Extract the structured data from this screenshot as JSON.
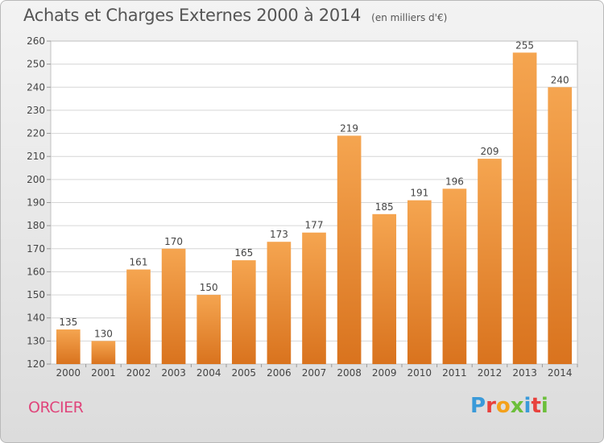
{
  "chart_data": {
    "type": "bar",
    "title": "Achats et Charges Externes 2000 à 2014",
    "subtitle": "(en milliers d'€)",
    "categories": [
      "2000",
      "2001",
      "2002",
      "2003",
      "2004",
      "2005",
      "2006",
      "2007",
      "2008",
      "2009",
      "2010",
      "2011",
      "2012",
      "2013",
      "2014"
    ],
    "values": [
      135,
      130,
      161,
      170,
      150,
      165,
      173,
      177,
      219,
      185,
      191,
      196,
      209,
      255,
      240
    ],
    "ylim": [
      120,
      260
    ],
    "yticks": [
      120,
      130,
      140,
      150,
      160,
      170,
      180,
      190,
      200,
      210,
      220,
      230,
      240,
      250,
      260
    ],
    "grid": true,
    "bar_color": "#f39a3f",
    "xlabel": "",
    "ylabel": ""
  },
  "place_name": "ORCIER",
  "brand": {
    "text": "Proxiti",
    "letter_colors": [
      "#3a9ad9",
      "#e8413c",
      "#f4a11b",
      "#6cbf3b",
      "#3a9ad9",
      "#e8413c",
      "#6cbf3b"
    ]
  }
}
